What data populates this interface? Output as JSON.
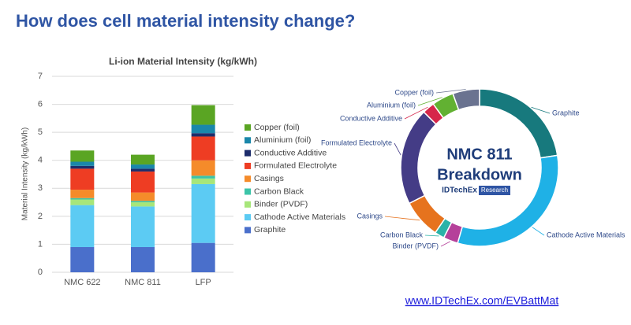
{
  "header": {
    "title": "How does cell material intensity change?"
  },
  "chart_data": [
    {
      "type": "bar",
      "stacked": true,
      "title": "Li-ion Material Intensity (kg/kWh)",
      "y_label": "Material Intensity (kg/kWh)",
      "categories": [
        "NMC 622",
        "NMC 811",
        "LFP"
      ],
      "series": [
        {
          "name": "Graphite",
          "color": "#4a6fcb",
          "values": [
            0.9,
            0.9,
            1.05
          ]
        },
        {
          "name": "Cathode Active Materials",
          "color": "#5ccbf3",
          "values": [
            1.5,
            1.45,
            2.1
          ]
        },
        {
          "name": "Binder (PVDF)",
          "color": "#a7e67a",
          "values": [
            0.2,
            0.15,
            0.2
          ]
        },
        {
          "name": "Carbon Black",
          "color": "#3cc4a8",
          "values": [
            0.05,
            0.05,
            0.1
          ]
        },
        {
          "name": "Casings",
          "color": "#f58b2a",
          "values": [
            0.3,
            0.3,
            0.55
          ]
        },
        {
          "name": "Formulated Electrolyte",
          "color": "#ee3d23",
          "values": [
            0.75,
            0.75,
            0.85
          ]
        },
        {
          "name": "Conductive Additive",
          "color": "#1d2d6b",
          "values": [
            0.1,
            0.1,
            0.12
          ]
        },
        {
          "name": "Aluminium (foil)",
          "color": "#1a87aa",
          "values": [
            0.15,
            0.15,
            0.3
          ]
        },
        {
          "name": "Copper (foil)",
          "color": "#5aa523",
          "values": [
            0.4,
            0.35,
            0.7
          ]
        }
      ],
      "ylim": [
        0,
        7
      ],
      "yticks": [
        0,
        1,
        2,
        3,
        4,
        5,
        6,
        7
      ],
      "grid": true
    },
    {
      "type": "donut",
      "center_label": [
        "NMC 811",
        "Breakdown"
      ],
      "logo": {
        "name": "IDTechEx",
        "tag": "Research"
      },
      "categories": [
        "Graphite",
        "Cathode Active Materials",
        "Binder (PVDF)",
        "Carbon Black",
        "Casings",
        "Formulated Electrolyte",
        "Conductive Additive",
        "Aluminium (foil)",
        "Copper (foil)"
      ],
      "values": [
        22.5,
        32,
        3,
        2,
        8,
        20,
        2.5,
        4.5,
        5.5
      ],
      "colors": [
        "#17797d",
        "#1fb1e6",
        "#b5419a",
        "#2bb3a8",
        "#e6731e",
        "#443c86",
        "#d6264a",
        "#62b132",
        "#6a7390"
      ]
    }
  ],
  "footer": {
    "link": "www.IDTechEx.com/EVBattMat"
  }
}
